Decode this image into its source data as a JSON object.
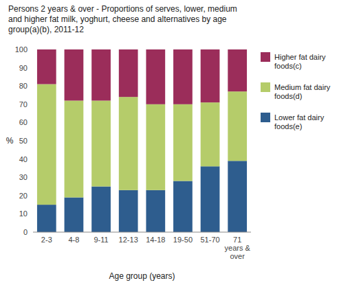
{
  "chart_data": {
    "type": "bar",
    "stacked": true,
    "title": "Persons  2 years & over - Proportions  of serves,  lower, medium\nand higher fat milk, yoghurt,  cheese and alternatives by age\ngroup(a)(b),  2011-12",
    "categories": [
      "2-3",
      "4-8",
      "9-11",
      "12-13",
      "14-18",
      "19-50",
      "51-70",
      "71\nyears &\nover"
    ],
    "series": [
      {
        "name": "Lower fat dairy\nfoods(e)",
        "color": "#2E5D8E",
        "values": [
          15,
          19,
          25,
          23,
          23,
          28,
          36,
          39
        ]
      },
      {
        "name": "Medium fat dairy\nfoods(d)",
        "color": "#B5CC6A",
        "values": [
          66,
          53,
          47,
          51,
          47,
          42,
          35,
          38
        ]
      },
      {
        "name": "Higher fat dairy\nfoods(c)",
        "color": "#9B2D5A",
        "values": [
          19,
          28,
          28,
          26,
          30,
          30,
          29,
          23
        ]
      }
    ],
    "xlabel": "Age group (years)",
    "ylabel": "%",
    "ylim": [
      0,
      100
    ],
    "yticks": [
      0,
      10,
      20,
      30,
      40,
      50,
      60,
      70,
      80,
      90,
      100
    ],
    "grid": false,
    "legend": "right"
  }
}
